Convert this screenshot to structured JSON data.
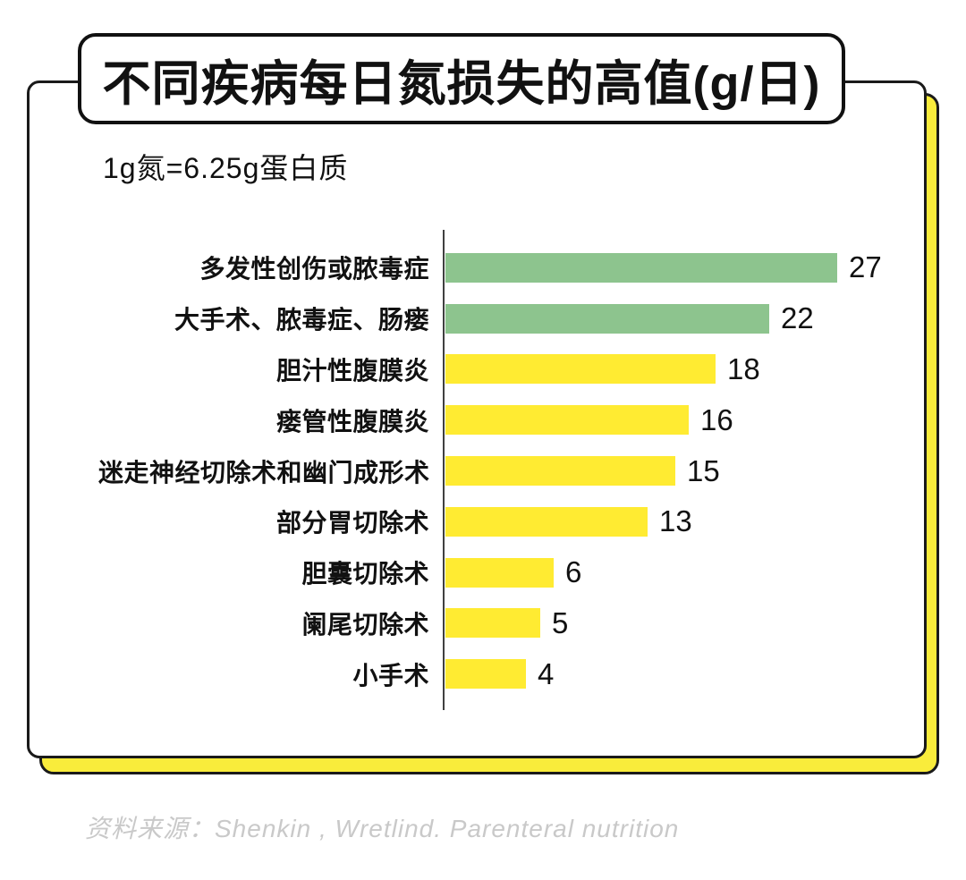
{
  "palette": {
    "ink": "#111111",
    "card_border": "#1a1a1a",
    "shadow_card_yellow": "#f9ec3b",
    "bar_green": "#8dc48e",
    "bar_yellow": "#ffeb32",
    "axis_gray": "#404040",
    "source_text_gray": "#c9c9c9"
  },
  "chart_data": {
    "type": "bar",
    "orientation": "horizontal",
    "title": "不同疾病每日氮损失的高值(g/日)",
    "subtitle": "1g氮=6.25g蛋白质",
    "unit": "g/日",
    "categories": [
      "多发性创伤或脓毒症",
      "大手术、脓毒症、肠瘘",
      "胆汁性腹膜炎",
      "瘘管性腹膜炎",
      "迷走神经切除术和幽门成形术",
      "部分胃切除术",
      "胆囊切除术",
      "阑尾切除术",
      "小手术"
    ],
    "values": [
      27,
      22,
      18,
      16,
      15,
      13,
      6,
      5,
      4
    ],
    "bar_colors": [
      "#8dc48e",
      "#8dc48e",
      "#ffeb32",
      "#ffeb32",
      "#ffeb32",
      "#ffeb32",
      "#ffeb32",
      "#ffeb32",
      "#ffeb32"
    ],
    "value_labels_shown": true,
    "xlim": [
      0,
      28
    ],
    "grid": "off",
    "legend": "none",
    "source": "资料来源：Shenkin , Wretlind. Parenteral nutrition"
  }
}
